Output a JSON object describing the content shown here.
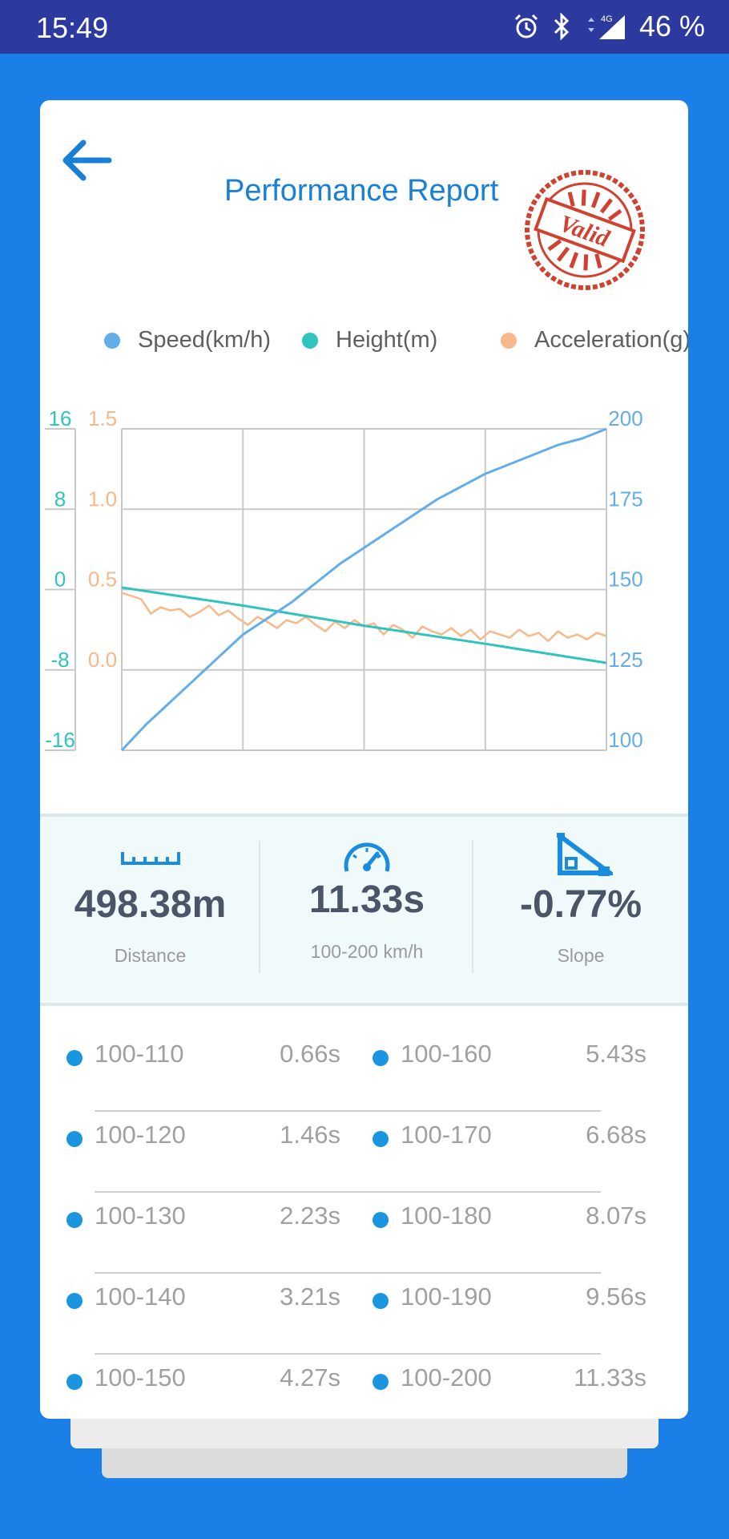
{
  "status": {
    "time": "15:49",
    "battery": "46 %",
    "network": "4G"
  },
  "header": {
    "title": "Performance Report",
    "stamp_text": "Valid"
  },
  "legend": [
    {
      "label": "Speed(km/h)",
      "color": "#63aee8"
    },
    {
      "label": "Height(m)",
      "color": "#2fc4bd"
    },
    {
      "label": "Acceleration(g)",
      "color": "#f7b88a"
    }
  ],
  "chart_data": {
    "type": "line",
    "axes": {
      "height_ticks": [
        "16",
        "8",
        "0",
        "-8",
        "-16"
      ],
      "accel_ticks": [
        "1.5",
        "1.0",
        "0.5",
        "0.0"
      ],
      "speed_ticks": [
        "200",
        "175",
        "150",
        "125",
        "100"
      ],
      "height_range": [
        -16,
        16
      ],
      "accel_range": [
        -0.5,
        1.5
      ],
      "speed_range": [
        100,
        200
      ]
    },
    "x_range": [
      0,
      100
    ],
    "grid": true,
    "series": [
      {
        "name": "Speed(km/h)",
        "axis": "speed",
        "color": "#63aee8",
        "x": [
          0,
          5,
          10,
          15,
          20,
          25,
          30,
          35,
          40,
          45,
          50,
          55,
          60,
          65,
          70,
          75,
          80,
          85,
          90,
          95,
          100
        ],
        "values": [
          100,
          108,
          115,
          122,
          129,
          136,
          141,
          146,
          152,
          158,
          163,
          168,
          173,
          178,
          182,
          186,
          189,
          192,
          195,
          197,
          200
        ]
      },
      {
        "name": "Height(m)",
        "axis": "height",
        "color": "#2fc4bd",
        "x": [
          0,
          25,
          50,
          75,
          100
        ],
        "values": [
          0.2,
          -1.6,
          -3.6,
          -5.4,
          -7.3
        ]
      },
      {
        "name": "Acceleration(g)",
        "axis": "accel",
        "color": "#f7b88a",
        "x": [
          0,
          2,
          4,
          6,
          8,
          10,
          12,
          14,
          16,
          18,
          20,
          22,
          24,
          26,
          28,
          30,
          32,
          34,
          36,
          38,
          40,
          42,
          44,
          46,
          48,
          50,
          52,
          54,
          56,
          58,
          60,
          62,
          64,
          66,
          68,
          70,
          72,
          74,
          76,
          78,
          80,
          82,
          84,
          86,
          88,
          90,
          92,
          94,
          96,
          98,
          100
        ],
        "values": [
          0.48,
          0.46,
          0.44,
          0.35,
          0.39,
          0.37,
          0.38,
          0.33,
          0.36,
          0.4,
          0.34,
          0.37,
          0.32,
          0.28,
          0.33,
          0.3,
          0.26,
          0.31,
          0.29,
          0.33,
          0.28,
          0.24,
          0.3,
          0.26,
          0.31,
          0.27,
          0.29,
          0.22,
          0.28,
          0.25,
          0.2,
          0.27,
          0.24,
          0.22,
          0.26,
          0.21,
          0.25,
          0.19,
          0.24,
          0.22,
          0.2,
          0.25,
          0.21,
          0.23,
          0.18,
          0.24,
          0.2,
          0.22,
          0.19,
          0.23,
          0.21
        ]
      }
    ]
  },
  "stats": [
    {
      "value": "498.38m",
      "label": "Distance",
      "icon": "ruler-icon"
    },
    {
      "value": "11.33s",
      "label": "100-200 km/h",
      "icon": "speedometer-icon"
    },
    {
      "value": "-0.77%",
      "label": "Slope",
      "icon": "slope-icon"
    }
  ],
  "splits": [
    {
      "left": {
        "range": "100-110",
        "time": "0.66s"
      },
      "right": {
        "range": "100-160",
        "time": "5.43s"
      }
    },
    {
      "left": {
        "range": "100-120",
        "time": "1.46s"
      },
      "right": {
        "range": "100-170",
        "time": "6.68s"
      }
    },
    {
      "left": {
        "range": "100-130",
        "time": "2.23s"
      },
      "right": {
        "range": "100-180",
        "time": "8.07s"
      }
    },
    {
      "left": {
        "range": "100-140",
        "time": "3.21s"
      },
      "right": {
        "range": "100-190",
        "time": "9.56s"
      }
    },
    {
      "left": {
        "range": "100-150",
        "time": "4.27s"
      },
      "right": {
        "range": "100-200",
        "time": "11.33s"
      }
    }
  ]
}
